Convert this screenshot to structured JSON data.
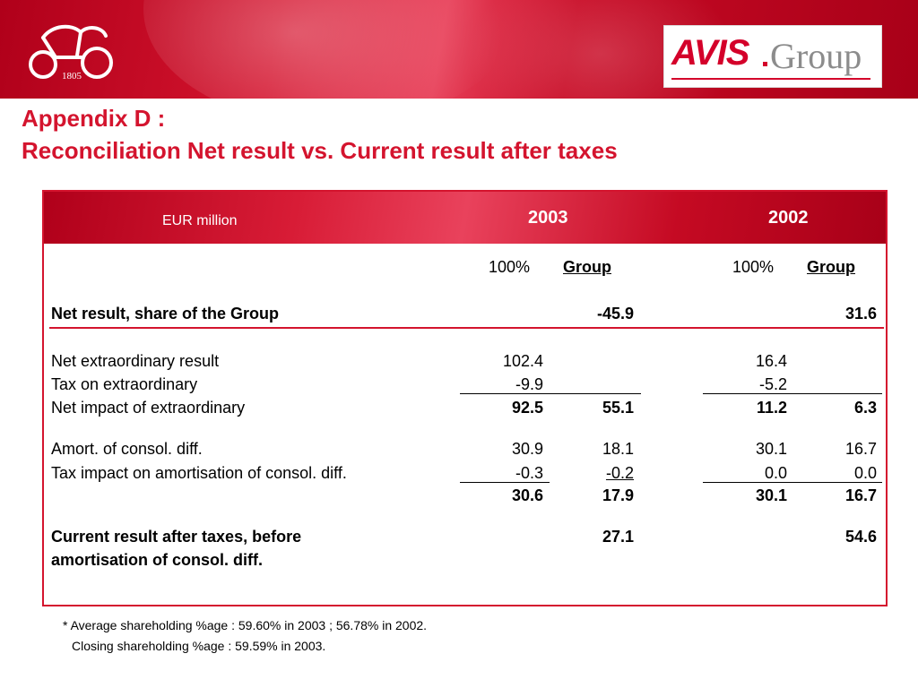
{
  "logo": {
    "carriage_year": "1805",
    "brand_name": "AVIS",
    "brand_suffix": "Group"
  },
  "title": {
    "line1": "Appendix D :",
    "line2": "Reconciliation Net result vs. Current result after taxes"
  },
  "table": {
    "unit_label": "EUR million",
    "years": [
      "2003",
      "2002"
    ],
    "subheaders": [
      "100%",
      "Group",
      "100%",
      "Group"
    ],
    "rows": [
      {
        "label": "Net result, share of the Group",
        "bold": true,
        "values": [
          "",
          "-45.9",
          "",
          "31.6"
        ]
      },
      {
        "label": "Net extraordinary result",
        "bold": false,
        "values": [
          "102.4",
          "",
          "16.4",
          ""
        ]
      },
      {
        "label": "Tax on extraordinary",
        "bold": false,
        "values": [
          "-9.9",
          "",
          "-5.2",
          ""
        ]
      },
      {
        "label": "Net impact of extraordinary",
        "bold": false,
        "values": [
          "92.5",
          "55.1",
          "11.2",
          "6.3"
        ]
      },
      {
        "label": "Amort. of consol. diff.",
        "bold": false,
        "values": [
          "30.9",
          "18.1",
          "30.1",
          "16.7"
        ]
      },
      {
        "label": "Tax impact on amortisation of consol. diff.",
        "bold": false,
        "values": [
          "-0.3",
          "-0.2",
          "0.0",
          "0.0"
        ]
      },
      {
        "label": "",
        "bold": false,
        "values": [
          "30.6",
          "17.9",
          "30.1",
          "16.7"
        ]
      },
      {
        "label_line1": "Current result after taxes, before",
        "label_line2": "amortisation of consol. diff.",
        "bold": true,
        "values": [
          "",
          "27.1",
          "",
          "54.6"
        ]
      }
    ]
  },
  "footnotes": {
    "line1": "* Average shareholding %age : 59.60% in 2003 ; 56.78% in 2002.",
    "line2": "Closing shareholding %age : 59.59% in 2003."
  },
  "colors": {
    "accent": "#d4142e",
    "banner": "#c70a24",
    "logo_gray": "#8c8c8c"
  }
}
